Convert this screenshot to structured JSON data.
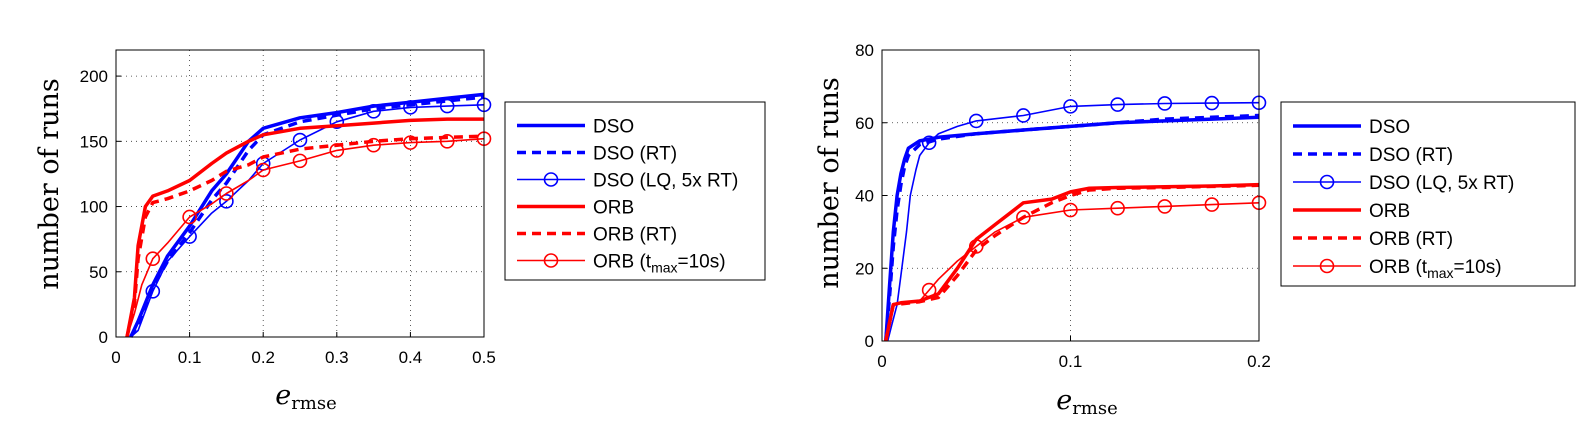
{
  "chart_data": [
    {
      "type": "line",
      "xlabel": "e",
      "xlabel_sub": "rmse",
      "ylabel": "number of runs",
      "xlim": [
        0,
        0.5
      ],
      "ylim": [
        0,
        220
      ],
      "xticks": [
        "0",
        "0.1",
        "0.2",
        "0.3",
        "0.4",
        "0.5"
      ],
      "yticks": [
        "0",
        "50",
        "100",
        "150",
        "200"
      ],
      "grid": true,
      "legend_position": "right-outside",
      "series": [
        {
          "name": "DSO",
          "color": "#0000ff",
          "style": "solid-thick",
          "x": [
            0.02,
            0.03,
            0.05,
            0.07,
            0.1,
            0.13,
            0.15,
            0.18,
            0.2,
            0.25,
            0.3,
            0.35,
            0.4,
            0.45,
            0.5
          ],
          "y": [
            0,
            12,
            40,
            62,
            85,
            112,
            125,
            150,
            160,
            168,
            172,
            177,
            180,
            183,
            186
          ]
        },
        {
          "name": "DSO (RT)",
          "color": "#0000ff",
          "style": "dashed-thick",
          "x": [
            0.02,
            0.03,
            0.05,
            0.07,
            0.1,
            0.13,
            0.15,
            0.18,
            0.2,
            0.25,
            0.3,
            0.35,
            0.4,
            0.45,
            0.5
          ],
          "y": [
            0,
            10,
            38,
            58,
            80,
            105,
            118,
            143,
            155,
            165,
            170,
            175,
            178,
            181,
            184
          ]
        },
        {
          "name": "DSO (LQ, 5x RT)",
          "color": "#0000ff",
          "style": "solid-thin-circle",
          "x": [
            0.02,
            0.03,
            0.05,
            0.07,
            0.1,
            0.13,
            0.15,
            0.18,
            0.2,
            0.25,
            0.3,
            0.35,
            0.4,
            0.45,
            0.5
          ],
          "y": [
            0,
            5,
            35,
            58,
            77,
            95,
            104,
            120,
            133,
            151,
            165,
            173,
            176,
            177,
            178
          ],
          "marker_x": [
            0.05,
            0.1,
            0.15,
            0.2,
            0.25,
            0.3,
            0.35,
            0.4,
            0.45,
            0.5
          ]
        },
        {
          "name": "ORB",
          "color": "#ff0000",
          "style": "solid-thick",
          "x": [
            0.015,
            0.025,
            0.03,
            0.04,
            0.05,
            0.07,
            0.1,
            0.13,
            0.15,
            0.18,
            0.2,
            0.25,
            0.3,
            0.35,
            0.4,
            0.45,
            0.5
          ],
          "y": [
            0,
            30,
            70,
            100,
            108,
            112,
            120,
            133,
            141,
            150,
            155,
            160,
            162,
            164,
            166,
            167,
            167
          ]
        },
        {
          "name": "ORB (RT)",
          "color": "#ff0000",
          "style": "dashed-thick",
          "x": [
            0.015,
            0.025,
            0.03,
            0.04,
            0.05,
            0.07,
            0.1,
            0.13,
            0.15,
            0.18,
            0.2,
            0.25,
            0.3,
            0.35,
            0.4,
            0.45,
            0.5
          ],
          "y": [
            0,
            25,
            60,
            92,
            103,
            106,
            112,
            120,
            127,
            132,
            138,
            144,
            147,
            150,
            152,
            153,
            154
          ]
        },
        {
          "name": "ORB (t_max=10s)",
          "color": "#ff0000",
          "style": "solid-thin-circle",
          "x": [
            0.015,
            0.025,
            0.035,
            0.05,
            0.07,
            0.1,
            0.13,
            0.15,
            0.18,
            0.2,
            0.25,
            0.3,
            0.35,
            0.4,
            0.45,
            0.5
          ],
          "y": [
            0,
            18,
            40,
            60,
            72,
            92,
            102,
            110,
            120,
            128,
            135,
            143,
            147,
            149,
            150,
            152
          ],
          "marker_x": [
            0.05,
            0.1,
            0.15,
            0.2,
            0.25,
            0.3,
            0.35,
            0.4,
            0.45,
            0.5
          ]
        }
      ]
    },
    {
      "type": "line",
      "xlabel": "e",
      "xlabel_sub": "rmse",
      "ylabel": "number of runs",
      "xlim": [
        0,
        0.2
      ],
      "ylim": [
        0,
        80
      ],
      "xticks": [
        "0",
        "0.1",
        "0.2"
      ],
      "yticks": [
        "0",
        "20",
        "40",
        "60",
        "80"
      ],
      "grid": true,
      "legend_position": "right-outside",
      "series": [
        {
          "name": "DSO",
          "color": "#0000ff",
          "style": "solid-thick",
          "x": [
            0.002,
            0.004,
            0.006,
            0.008,
            0.01,
            0.012,
            0.014,
            0.02,
            0.03,
            0.05,
            0.075,
            0.1,
            0.125,
            0.15,
            0.175,
            0.2
          ],
          "y": [
            0,
            15,
            30,
            40,
            46,
            50,
            53,
            55,
            56,
            57,
            58,
            59,
            60,
            60.5,
            61,
            61.5
          ]
        },
        {
          "name": "DSO (RT)",
          "color": "#0000ff",
          "style": "dashed-thick",
          "x": [
            0.002,
            0.004,
            0.006,
            0.008,
            0.01,
            0.012,
            0.014,
            0.02,
            0.03,
            0.05,
            0.075,
            0.1,
            0.125,
            0.15,
            0.175,
            0.2
          ],
          "y": [
            0,
            12,
            26,
            36,
            43,
            48,
            51,
            54,
            55.5,
            57,
            58,
            59,
            60,
            61,
            61.5,
            62
          ]
        },
        {
          "name": "DSO (LQ, 5x RT)",
          "color": "#0000ff",
          "style": "solid-thin-circle",
          "x": [
            0.003,
            0.005,
            0.008,
            0.01,
            0.013,
            0.015,
            0.018,
            0.02,
            0.025,
            0.03,
            0.04,
            0.05,
            0.075,
            0.1,
            0.125,
            0.15,
            0.175,
            0.2
          ],
          "y": [
            0,
            4,
            10,
            18,
            30,
            40,
            47,
            51,
            54.5,
            57,
            59,
            60.5,
            62,
            64.5,
            65,
            65.3,
            65.4,
            65.5
          ],
          "marker_x": [
            0.025,
            0.05,
            0.075,
            0.1,
            0.125,
            0.15,
            0.175,
            0.2
          ]
        },
        {
          "name": "ORB",
          "color": "#ff0000",
          "style": "solid-thick",
          "x": [
            0.002,
            0.004,
            0.006,
            0.01,
            0.02,
            0.03,
            0.04,
            0.05,
            0.06,
            0.075,
            0.09,
            0.1,
            0.11,
            0.125,
            0.15,
            0.175,
            0.2
          ],
          "y": [
            0,
            5,
            10,
            10.5,
            11,
            13,
            20,
            28,
            32,
            38,
            39,
            41,
            42,
            42.2,
            42.4,
            42.6,
            43
          ]
        },
        {
          "name": "ORB (RT)",
          "color": "#ff0000",
          "style": "dashed-thick",
          "x": [
            0.002,
            0.004,
            0.006,
            0.01,
            0.02,
            0.03,
            0.04,
            0.05,
            0.06,
            0.075,
            0.09,
            0.1,
            0.11,
            0.125,
            0.15,
            0.175,
            0.2
          ],
          "y": [
            0,
            5,
            10,
            10.2,
            10.8,
            12,
            18,
            25,
            29,
            34,
            38,
            40,
            41.5,
            42,
            42.2,
            42.5,
            42.8
          ]
        },
        {
          "name": "ORB (t_max=10s)",
          "color": "#ff0000",
          "style": "solid-thin-circle",
          "x": [
            0.002,
            0.004,
            0.006,
            0.01,
            0.02,
            0.025,
            0.03,
            0.04,
            0.05,
            0.06,
            0.075,
            0.1,
            0.125,
            0.15,
            0.175,
            0.2
          ],
          "y": [
            0,
            5,
            10,
            10.3,
            11,
            14,
            17,
            22,
            26,
            30,
            34,
            36,
            36.5,
            37,
            37.5,
            38
          ],
          "marker_x": [
            0.025,
            0.05,
            0.075,
            0.1,
            0.125,
            0.15,
            0.175,
            0.2
          ]
        }
      ]
    }
  ],
  "legend_labels": [
    "DSO",
    "DSO (RT)",
    "DSO (LQ, 5x RT)",
    "ORB",
    "ORB (RT)",
    "ORB ("
  ],
  "legend_t": "t",
  "legend_max": "max",
  "legend_eq": "=10s)"
}
